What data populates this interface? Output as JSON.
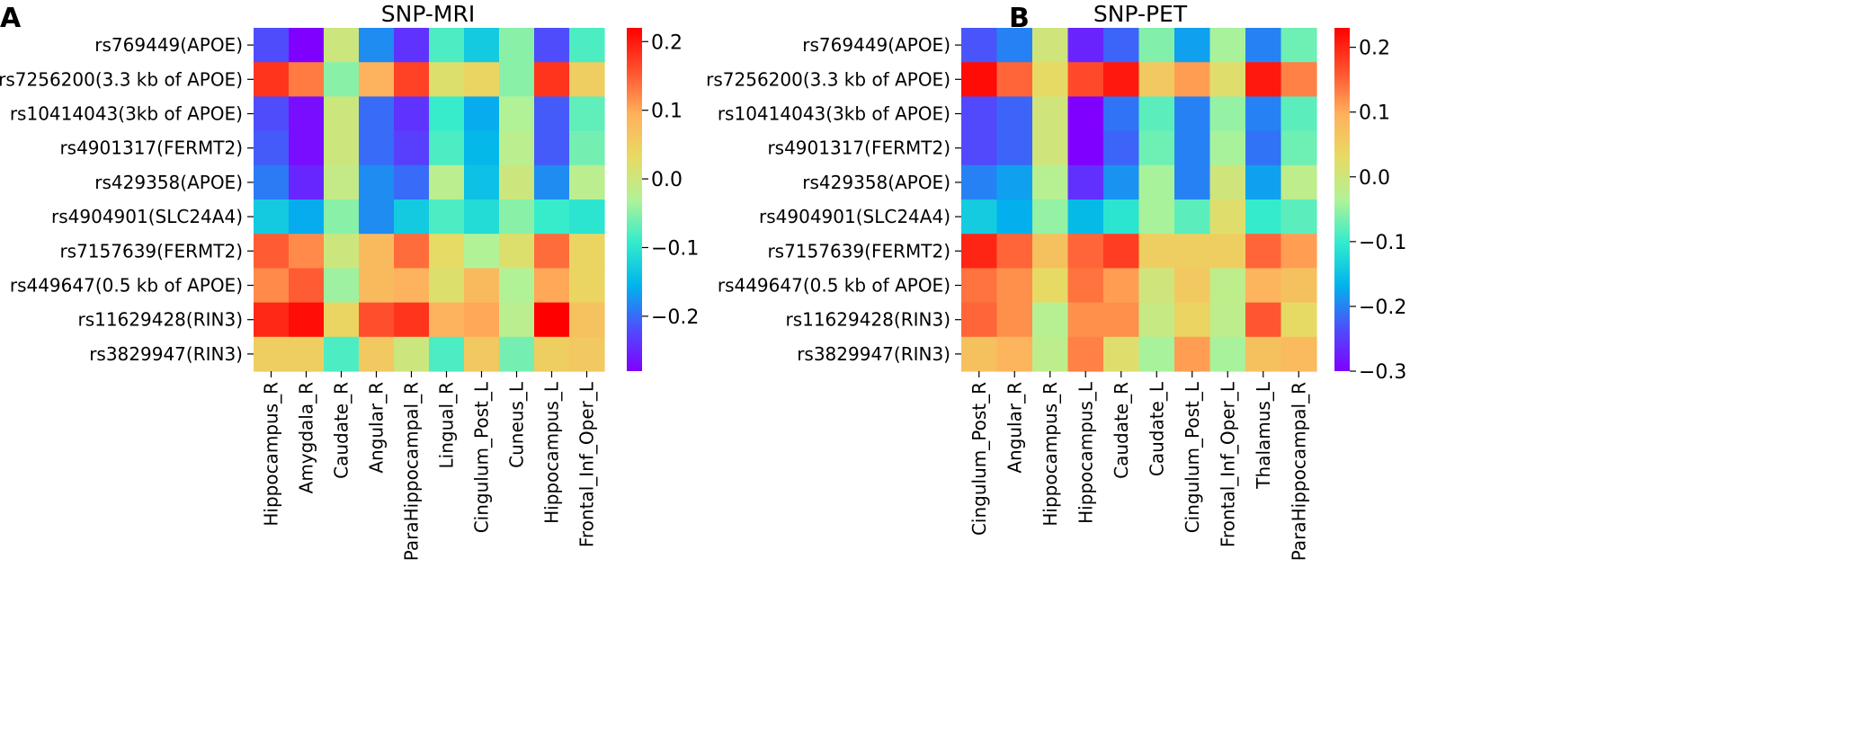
{
  "chart_data": [
    {
      "type": "heatmap",
      "panel_label": "A",
      "title": "SNP-MRI",
      "xlabel": "",
      "ylabel": "",
      "rows": [
        "rs769449(APOE)",
        "rs7256200(3.3 kb of APOE)",
        "rs10414043(3kb of APOE)",
        "rs4901317(FERMT2)",
        "rs429358(APOE)",
        "rs4904901(SLC24A4)",
        "rs7157639(FERMT2)",
        "rs449647(0.5 kb of APOE)",
        "rs11629428(RIN3)",
        "rs3829947(RIN3)"
      ],
      "columns": [
        "Hippocampus_R",
        "Amygdala_R",
        "Caudate_R",
        "Angular_R",
        "ParaHippocampal_R",
        "Lingual_R",
        "Cingulum_Post_L",
        "Cuneus_L",
        "Hippocampus_L",
        "Frontal_Inf_Oper_L"
      ],
      "values": [
        [
          -0.22,
          -0.28,
          0.0,
          -0.18,
          -0.24,
          -0.08,
          -0.13,
          -0.05,
          -0.22,
          -0.08
        ],
        [
          0.18,
          0.13,
          -0.05,
          0.09,
          0.17,
          0.02,
          0.04,
          -0.05,
          0.18,
          0.05
        ],
        [
          -0.22,
          -0.27,
          0.0,
          -0.2,
          -0.24,
          -0.09,
          -0.16,
          -0.03,
          -0.21,
          -0.07
        ],
        [
          -0.21,
          -0.27,
          0.0,
          -0.2,
          -0.23,
          -0.08,
          -0.15,
          -0.02,
          -0.21,
          -0.06
        ],
        [
          -0.19,
          -0.25,
          -0.01,
          -0.18,
          -0.2,
          -0.02,
          -0.14,
          0.0,
          -0.18,
          -0.02
        ],
        [
          -0.13,
          -0.16,
          -0.05,
          -0.18,
          -0.13,
          -0.08,
          -0.11,
          -0.05,
          -0.09,
          -0.1
        ],
        [
          0.15,
          0.12,
          0.0,
          0.08,
          0.14,
          0.03,
          -0.03,
          0.02,
          0.14,
          0.04
        ],
        [
          0.12,
          0.15,
          -0.04,
          0.08,
          0.09,
          0.02,
          0.08,
          -0.03,
          0.1,
          0.04
        ],
        [
          0.19,
          0.21,
          0.04,
          0.16,
          0.18,
          0.09,
          0.1,
          -0.02,
          0.22,
          0.07
        ],
        [
          0.05,
          0.05,
          -0.08,
          0.06,
          0.0,
          -0.08,
          0.06,
          -0.06,
          0.05,
          0.06
        ]
      ],
      "vmin": -0.28,
      "vmax": 0.22,
      "colormap": "rainbow",
      "colorbar_ticks": [
        0.2,
        0.1,
        0.0,
        -0.1,
        -0.2
      ],
      "colorbar_tick_labels": [
        "0.2",
        "0.1",
        "0.0",
        "−0.1",
        "−0.2"
      ],
      "grid": false
    },
    {
      "type": "heatmap",
      "panel_label": "B",
      "title": "SNP-PET",
      "xlabel": "",
      "ylabel": "",
      "rows": [
        "rs769449(APOE)",
        "rs7256200(3.3 kb of APOE)",
        "rs10414043(3kb of APOE)",
        "rs4901317(FERMT2)",
        "rs429358(APOE)",
        "rs4904901(SLC24A4)",
        "rs7157639(FERMT2)",
        "rs449647(0.5 kb of APOE)",
        "rs11629428(RIN3)",
        "rs3829947(RIN3)"
      ],
      "columns": [
        "Cingulum_Post_R",
        "Angular_R",
        "Hippocampus_R",
        "Hippocampus_L",
        "Caudate_R",
        "Caudate_L",
        "Cingulum_Post_L",
        "Frontal_Inf_Oper_L",
        "Thalamus_L",
        "ParaHippocampal_R"
      ],
      "values": [
        [
          -0.23,
          -0.2,
          0.0,
          -0.27,
          -0.22,
          -0.06,
          -0.18,
          -0.04,
          -0.2,
          -0.07
        ],
        [
          0.22,
          0.15,
          0.03,
          0.17,
          0.21,
          0.06,
          0.11,
          0.02,
          0.21,
          0.13
        ],
        [
          -0.24,
          -0.22,
          0.0,
          -0.3,
          -0.21,
          -0.08,
          -0.2,
          -0.05,
          -0.2,
          -0.08
        ],
        [
          -0.24,
          -0.22,
          0.0,
          -0.3,
          -0.22,
          -0.07,
          -0.2,
          -0.04,
          -0.21,
          -0.07
        ],
        [
          -0.2,
          -0.18,
          -0.03,
          -0.26,
          -0.19,
          -0.04,
          -0.2,
          0.0,
          -0.18,
          -0.02
        ],
        [
          -0.14,
          -0.17,
          -0.05,
          -0.16,
          -0.11,
          -0.04,
          -0.08,
          0.02,
          -0.1,
          -0.08
        ],
        [
          0.2,
          0.15,
          0.07,
          0.15,
          0.18,
          0.05,
          0.05,
          0.05,
          0.15,
          0.11
        ],
        [
          0.14,
          0.12,
          0.03,
          0.14,
          0.11,
          0.0,
          0.06,
          -0.02,
          0.09,
          0.07
        ],
        [
          0.15,
          0.12,
          -0.03,
          0.12,
          0.12,
          -0.01,
          0.04,
          -0.02,
          0.16,
          0.03
        ],
        [
          0.07,
          0.09,
          -0.02,
          0.13,
          0.02,
          -0.04,
          0.11,
          -0.04,
          0.07,
          0.08
        ]
      ],
      "vmin": -0.3,
      "vmax": 0.23,
      "colormap": "rainbow",
      "colorbar_ticks": [
        0.2,
        0.1,
        0.0,
        -0.1,
        -0.2,
        -0.3
      ],
      "colorbar_tick_labels": [
        "0.2",
        "0.1",
        "0.0",
        "−0.1",
        "−0.2",
        "−0.3"
      ],
      "grid": false
    }
  ]
}
